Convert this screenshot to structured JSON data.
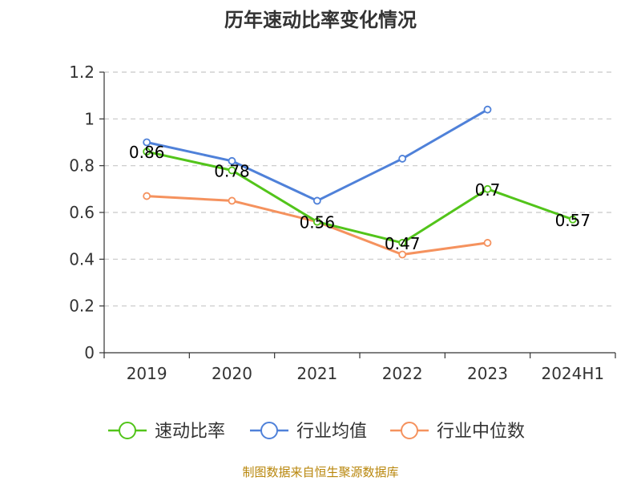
{
  "chart_data": {
    "type": "line",
    "title": "历年速动比率变化情况",
    "categories": [
      "2019",
      "2020",
      "2021",
      "2022",
      "2023",
      "2024H1"
    ],
    "ylim": [
      0,
      1.2
    ],
    "yticks": [
      "0",
      "0.2",
      "0.4",
      "0.6",
      "0.8",
      "1",
      "1.2"
    ],
    "ytick_values": [
      0,
      0.2,
      0.4,
      0.6,
      0.8,
      1.0,
      1.2
    ],
    "grid": true,
    "legend_position": "bottom",
    "series": [
      {
        "name": "速动比率",
        "color": "#52c41a",
        "values": [
          0.86,
          0.78,
          0.56,
          0.47,
          0.7,
          0.57
        ],
        "labels": [
          "0.86",
          "0.78",
          "0.56",
          "0.47",
          "0.7",
          "0.57"
        ]
      },
      {
        "name": "行业均值",
        "color": "#4f81d9",
        "values": [
          0.9,
          0.82,
          0.65,
          0.83,
          1.04,
          null
        ]
      },
      {
        "name": "行业中位数",
        "color": "#f5925e",
        "values": [
          0.67,
          0.65,
          0.56,
          0.42,
          0.47,
          null
        ]
      }
    ],
    "source": "制图数据来自恒生聚源数据库"
  }
}
